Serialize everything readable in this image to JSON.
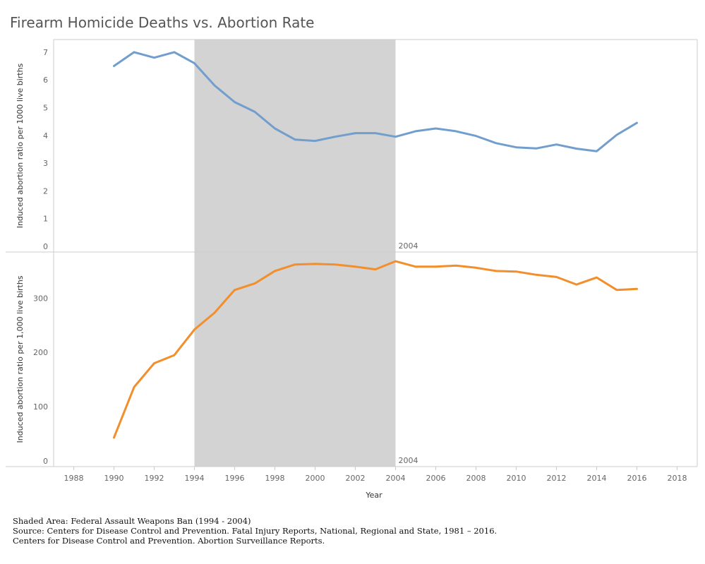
{
  "title": "Firearm Homicide Deaths vs. Abortion Rate",
  "shaded_label": "2004",
  "footer": [
    "Shaded Area: Federal Assault Weapons Ban (1994 - 2004)",
    "Source: Centers for Disease Control and Prevention. Fatal Injury Reports, National, Regional and State, 1981 – 2016.",
    "Centers for Disease Control and Prevention. Abortion Surveillance Reports."
  ],
  "colors": {
    "series_top": "#729ECE",
    "series_bottom": "#F28E2B",
    "shade": "#D3D3D3",
    "axis": "#CCCCCC"
  },
  "chart_data": [
    {
      "type": "line",
      "ylabel": "Induced abortion ratio per 1000 live births",
      "ylim": [
        0,
        7.2
      ],
      "yticks": [
        0,
        1,
        2,
        3,
        4,
        5,
        6,
        7
      ],
      "xlim": [
        1987,
        2019
      ],
      "shaded_range": [
        1994,
        2004
      ],
      "x": [
        1990,
        1991,
        1992,
        1993,
        1994,
        1995,
        1996,
        1997,
        1998,
        1999,
        2000,
        2001,
        2002,
        2003,
        2004,
        2005,
        2006,
        2007,
        2008,
        2009,
        2010,
        2011,
        2012,
        2013,
        2014,
        2015,
        2016
      ],
      "values": [
        6.5,
        7.0,
        6.8,
        7.0,
        6.6,
        5.8,
        5.2,
        4.85,
        4.25,
        3.85,
        3.8,
        3.95,
        4.08,
        4.08,
        3.95,
        4.15,
        4.25,
        4.15,
        3.98,
        3.72,
        3.57,
        3.53,
        3.67,
        3.52,
        3.43,
        4.02,
        4.45
      ]
    },
    {
      "type": "line",
      "ylabel": "Induced abortion ratio per 1,000 live births",
      "xlabel": "Year",
      "ylim": [
        0,
        372
      ],
      "yticks": [
        0,
        100,
        200,
        300
      ],
      "xlim": [
        1987,
        2019
      ],
      "xticks": [
        1988,
        1990,
        1992,
        1994,
        1996,
        1998,
        2000,
        2002,
        2004,
        2006,
        2008,
        2010,
        2012,
        2014,
        2016,
        2018
      ],
      "shaded_range": [
        1994,
        2004
      ],
      "x": [
        1990,
        1991,
        1992,
        1993,
        1994,
        1995,
        1996,
        1997,
        1998,
        1999,
        2000,
        2001,
        2002,
        2003,
        2004,
        2005,
        2006,
        2007,
        2008,
        2009,
        2010,
        2011,
        2012,
        2013,
        2014,
        2015,
        2016
      ],
      "values": [
        43,
        136,
        180,
        195,
        242,
        273,
        315,
        327,
        350,
        362,
        363,
        362,
        358,
        353,
        368,
        358,
        358,
        360,
        356,
        350,
        349,
        343,
        339,
        325,
        338,
        315,
        317
      ]
    }
  ]
}
